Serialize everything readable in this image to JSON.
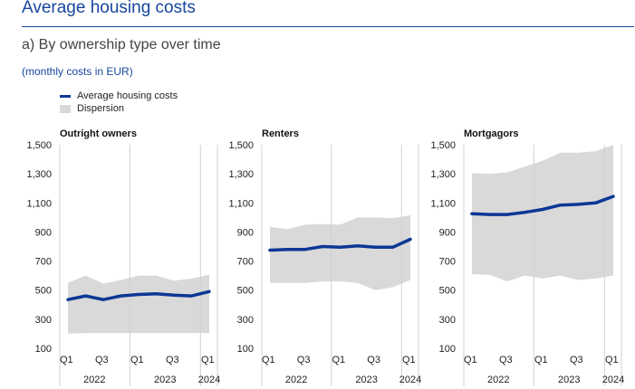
{
  "page": {
    "title": "Average housing costs",
    "subtitle": "a) By ownership type over time",
    "units": "(monthly costs in EUR)"
  },
  "legend": {
    "average_label": "Average housing costs",
    "dispersion_label": "Dispersion"
  },
  "colors": {
    "title": "#17469e",
    "line": "#0c3796",
    "band": "#d9d9d9",
    "grid": "#d0d0d0"
  },
  "chart_data": [
    {
      "type": "line",
      "title": "Outright owners",
      "x": [
        0,
        1,
        2,
        3,
        4,
        5,
        6,
        7,
        8
      ],
      "x_tick_labels": [
        "Q1",
        "Q3",
        "Q1",
        "Q3",
        "Q1"
      ],
      "x_tick_positions": [
        0,
        2,
        4,
        6,
        8
      ],
      "year_labels": [
        "2022",
        "2023",
        "2024"
      ],
      "ylim": [
        100,
        1500
      ],
      "y_ticks": [
        100,
        300,
        500,
        700,
        900,
        1100,
        1300,
        1500
      ],
      "y_tick_labels": [
        "100",
        "300",
        "500",
        "700",
        "900",
        "1,100",
        "1,300",
        "1,500"
      ],
      "series": [
        {
          "name": "Average housing costs",
          "values": [
            435,
            460,
            435,
            460,
            470,
            475,
            465,
            460,
            490
          ]
        },
        {
          "name": "Dispersion (upper)",
          "values": [
            550,
            600,
            545,
            570,
            600,
            600,
            565,
            580,
            605
          ]
        },
        {
          "name": "Dispersion (lower)",
          "values": [
            200,
            205,
            205,
            205,
            205,
            205,
            205,
            205,
            205
          ]
        }
      ]
    },
    {
      "type": "line",
      "title": "Renters",
      "x": [
        0,
        1,
        2,
        3,
        4,
        5,
        6,
        7,
        8
      ],
      "x_tick_labels": [
        "Q1",
        "Q3",
        "Q1",
        "Q3",
        "Q1"
      ],
      "x_tick_positions": [
        0,
        2,
        4,
        6,
        8
      ],
      "year_labels": [
        "2022",
        "2023",
        "2024"
      ],
      "ylim": [
        100,
        1500
      ],
      "y_ticks": [
        100,
        300,
        500,
        700,
        900,
        1100,
        1300,
        1500
      ],
      "y_tick_labels": [
        "100",
        "300",
        "500",
        "700",
        "900",
        "1,100",
        "1,300",
        "1,500"
      ],
      "series": [
        {
          "name": "Average housing costs",
          "values": [
            775,
            780,
            780,
            800,
            795,
            805,
            795,
            795,
            850
          ]
        },
        {
          "name": "Dispersion (upper)",
          "values": [
            935,
            920,
            950,
            955,
            950,
            1000,
            1000,
            995,
            1015
          ]
        },
        {
          "name": "Dispersion (lower)",
          "values": [
            550,
            550,
            550,
            560,
            560,
            550,
            500,
            520,
            570
          ]
        }
      ]
    },
    {
      "type": "line",
      "title": "Mortgagors",
      "x": [
        0,
        1,
        2,
        3,
        4,
        5,
        6,
        7,
        8
      ],
      "x_tick_labels": [
        "Q1",
        "Q3",
        "Q1",
        "Q3",
        "Q1"
      ],
      "x_tick_positions": [
        0,
        2,
        4,
        6,
        8
      ],
      "year_labels": [
        "2022",
        "2023",
        "2024"
      ],
      "ylim": [
        100,
        1500
      ],
      "y_ticks": [
        100,
        300,
        500,
        700,
        900,
        1100,
        1300,
        1500
      ],
      "y_tick_labels": [
        "100",
        "300",
        "500",
        "700",
        "900",
        "1,100",
        "1,300",
        "1,500"
      ],
      "series": [
        {
          "name": "Average housing costs",
          "values": [
            1025,
            1020,
            1020,
            1035,
            1055,
            1085,
            1090,
            1100,
            1145
          ]
        },
        {
          "name": "Dispersion (upper)",
          "values": [
            1305,
            1300,
            1310,
            1350,
            1390,
            1445,
            1445,
            1455,
            1500
          ]
        },
        {
          "name": "Dispersion (lower)",
          "values": [
            610,
            605,
            560,
            600,
            580,
            600,
            570,
            580,
            600
          ]
        }
      ]
    }
  ]
}
